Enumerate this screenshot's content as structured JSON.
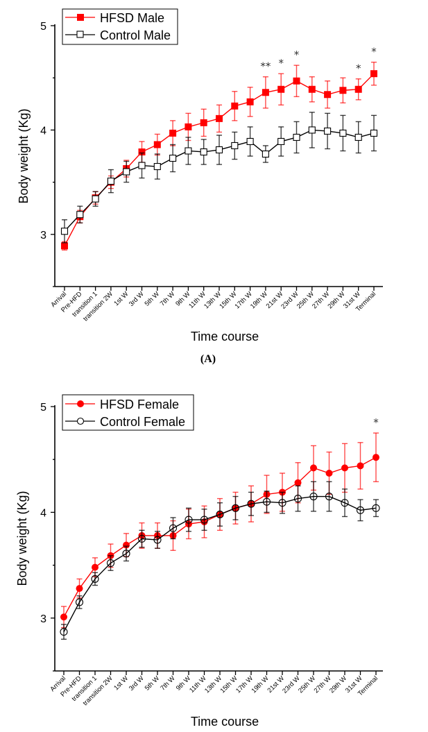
{
  "chart_data": [
    {
      "type": "line",
      "panel": "A",
      "caption": "(A)",
      "xlabel": "Time course",
      "ylabel": "Body weight (Kg)",
      "ylim": [
        2.5,
        5.0
      ],
      "yticks": [
        3,
        4,
        5
      ],
      "ytick_labels": [
        "3",
        "4",
        "5"
      ],
      "grid": false,
      "legend_position": "top-left",
      "categories": [
        "Arrival",
        "Pre-HFD",
        "transition 1",
        "transition 2W",
        "1st W",
        "3rd W",
        "5th W",
        "7th W",
        "9th W",
        "11th W",
        "13th W",
        "15th W",
        "17th W",
        "19th W",
        "21st W",
        "23rd W",
        "25th W",
        "27th W",
        "29th W",
        "31st W",
        "Terminal"
      ],
      "series": [
        {
          "name": "HFSD Male",
          "color": "#ff0000",
          "marker": "filled-square",
          "values": [
            2.89,
            3.17,
            3.35,
            3.5,
            3.63,
            3.79,
            3.86,
            3.97,
            4.03,
            4.07,
            4.11,
            4.23,
            4.27,
            4.36,
            4.39,
            4.47,
            4.39,
            4.34,
            4.38,
            4.39,
            4.54
          ],
          "errors": [
            0.04,
            0.06,
            0.06,
            0.06,
            0.08,
            0.1,
            0.1,
            0.12,
            0.13,
            0.13,
            0.13,
            0.14,
            0.14,
            0.15,
            0.15,
            0.15,
            0.12,
            0.13,
            0.12,
            0.1,
            0.11
          ]
        },
        {
          "name": "Control Male",
          "color": "#000000",
          "marker": "open-square",
          "values": [
            3.03,
            3.19,
            3.34,
            3.51,
            3.6,
            3.66,
            3.65,
            3.73,
            3.8,
            3.79,
            3.81,
            3.85,
            3.89,
            3.77,
            3.89,
            3.93,
            4.0,
            3.99,
            3.97,
            3.93,
            3.97
          ],
          "errors": [
            0.11,
            0.08,
            0.07,
            0.11,
            0.1,
            0.12,
            0.12,
            0.13,
            0.13,
            0.12,
            0.14,
            0.13,
            0.14,
            0.08,
            0.14,
            0.15,
            0.17,
            0.17,
            0.17,
            0.15,
            0.17
          ]
        }
      ],
      "annotations": [
        {
          "category": "19th W",
          "text": "**"
        },
        {
          "category": "21st W",
          "text": "*"
        },
        {
          "category": "23rd W",
          "text": "*"
        },
        {
          "category": "31st W",
          "text": "*"
        },
        {
          "category": "Terminal",
          "text": "*"
        }
      ]
    },
    {
      "type": "line",
      "panel": "B",
      "caption": "",
      "xlabel": "Time course",
      "ylabel": "Body weight (Kg)",
      "ylim": [
        2.5,
        5.0
      ],
      "yticks": [
        3,
        4,
        5
      ],
      "ytick_labels": [
        "3",
        "4",
        "5"
      ],
      "grid": false,
      "legend_position": "top-left",
      "categories": [
        "Arrival",
        "Pre-HFD",
        "transition 1",
        "transition 2W",
        "1st W",
        "3rd W",
        "5th W",
        "7th W",
        "9th W",
        "11th W",
        "13th W",
        "15th W",
        "17th W",
        "19th W",
        "21st W",
        "23rd W",
        "25th W",
        "27th W",
        "29th W",
        "31st W",
        "Terminal"
      ],
      "series": [
        {
          "name": "HFSD Female",
          "color": "#ff0000",
          "marker": "filled-circle",
          "values": [
            3.01,
            3.28,
            3.48,
            3.59,
            3.69,
            3.78,
            3.78,
            3.78,
            3.89,
            3.91,
            3.98,
            4.04,
            4.08,
            4.17,
            4.19,
            4.28,
            4.42,
            4.37,
            4.42,
            4.44,
            4.52
          ],
          "errors": [
            0.1,
            0.09,
            0.09,
            0.11,
            0.11,
            0.12,
            0.12,
            0.14,
            0.14,
            0.15,
            0.15,
            0.15,
            0.17,
            0.18,
            0.18,
            0.19,
            0.21,
            0.2,
            0.23,
            0.22,
            0.23
          ]
        },
        {
          "name": "Control Female",
          "color": "#000000",
          "marker": "open-circle",
          "values": [
            2.87,
            3.15,
            3.37,
            3.52,
            3.61,
            3.75,
            3.74,
            3.85,
            3.93,
            3.93,
            3.98,
            4.04,
            4.08,
            4.1,
            4.09,
            4.13,
            4.15,
            4.15,
            4.09,
            4.02,
            4.04
          ],
          "errors": [
            0.07,
            0.06,
            0.06,
            0.07,
            0.07,
            0.08,
            0.08,
            0.1,
            0.11,
            0.1,
            0.11,
            0.11,
            0.11,
            0.1,
            0.1,
            0.12,
            0.14,
            0.14,
            0.13,
            0.1,
            0.08
          ]
        }
      ],
      "annotations": [
        {
          "category": "Terminal",
          "text": "*"
        }
      ]
    }
  ]
}
